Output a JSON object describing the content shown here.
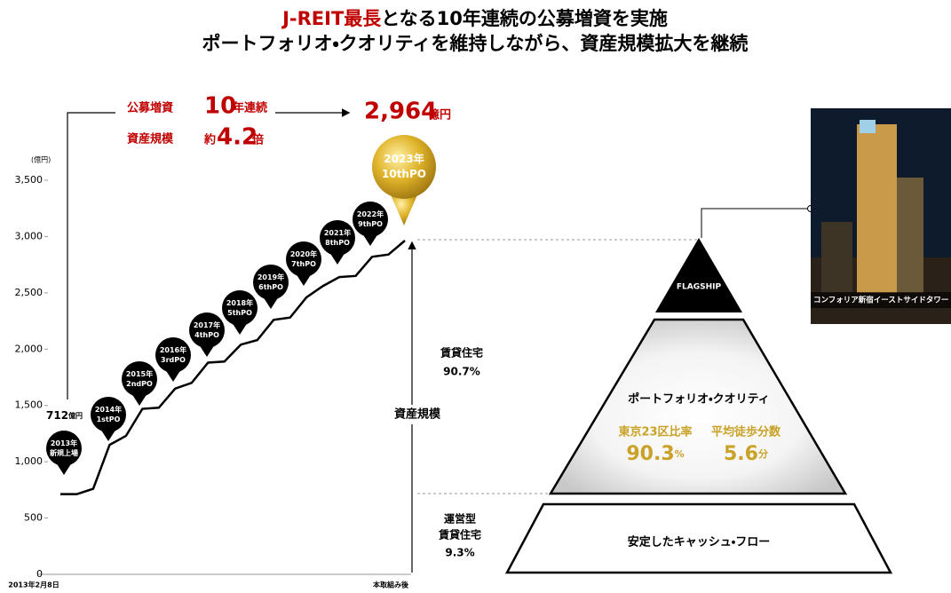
{
  "title": {
    "line1_highlight": "J-REIT最長",
    "line1_rest": "となる10年連続の公募増資を実施",
    "line2": "ポートフォリオ・クオリティを維持しながら、資産規模拡大を継続"
  },
  "summary": {
    "offering_label": "公募増資",
    "offering_number": "10",
    "offering_unit": "年連続",
    "size_label": "資産規模",
    "size_prefix": "約",
    "size_number": "4.2",
    "size_unit": "倍",
    "final_number": "2,964",
    "final_unit": "億円"
  },
  "chart_data": {
    "type": "line",
    "unit": "(億円)",
    "color": "#000000",
    "categories": [
      "2013年2月8日",
      null,
      null,
      null,
      null,
      null,
      null,
      null,
      null,
      null,
      null,
      null,
      null,
      null,
      null,
      null,
      null,
      null,
      null,
      null,
      null,
      "本取組み後"
    ],
    "values": [
      712,
      712,
      760,
      1150,
      1230,
      1470,
      1480,
      1650,
      1700,
      1880,
      1890,
      2040,
      2080,
      2260,
      2280,
      2460,
      2560,
      2640,
      2650,
      2820,
      2840,
      2964
    ],
    "ylim": [
      0,
      3500
    ],
    "yticks": [
      0,
      500,
      {
        "value": 1000,
        "label": "1,000"
      },
      {
        "value": 1500,
        "label": "1,500"
      },
      {
        "value": 2000,
        "label": "2,000"
      },
      {
        "value": 2500,
        "label": "2,500"
      },
      {
        "value": 3000,
        "label": "3,000"
      },
      {
        "value": 3500,
        "label": "3,500"
      }
    ],
    "start_label": {
      "number": "712",
      "unit": "億円"
    },
    "offerings": [
      {
        "year": "2013年",
        "label": "新規上場"
      },
      {
        "year": "2014年",
        "label": "1stPO"
      },
      {
        "year": "2015年",
        "label": "2ndPO"
      },
      {
        "year": "2016年",
        "label": "3rdPO"
      },
      {
        "year": "2017年",
        "label": "4thPO"
      },
      {
        "year": "2018年",
        "label": "5thPO"
      },
      {
        "year": "2019年",
        "label": "6thPO"
      },
      {
        "year": "2020年",
        "label": "7thPO"
      },
      {
        "year": "2021年",
        "label": "8thPO"
      },
      {
        "year": "2022年",
        "label": "9thPO"
      },
      {
        "year": "2023年",
        "label": "10thPO"
      }
    ]
  },
  "mix": {
    "size_label": "資産規模",
    "residential_label": "賃貸住宅",
    "residential_share": "90.7%",
    "operated_line1": "運営型",
    "operated_line2": "賃貸住宅",
    "operated_share": "9.3%"
  },
  "pyramid": {
    "top": "FLAGSHIP",
    "middle_title": "ポートフォリオ・クオリティ",
    "metric1_label": "東京23区比率",
    "metric1_value": "90.3",
    "metric1_unit": "%",
    "metric2_label": "平均徒歩分数",
    "metric2_value": "5.6",
    "metric2_unit": "分",
    "bottom": "安定したキャッシュ・フロー"
  },
  "photo": {
    "caption": "コンフォリア新宿イーストサイドタワー"
  }
}
